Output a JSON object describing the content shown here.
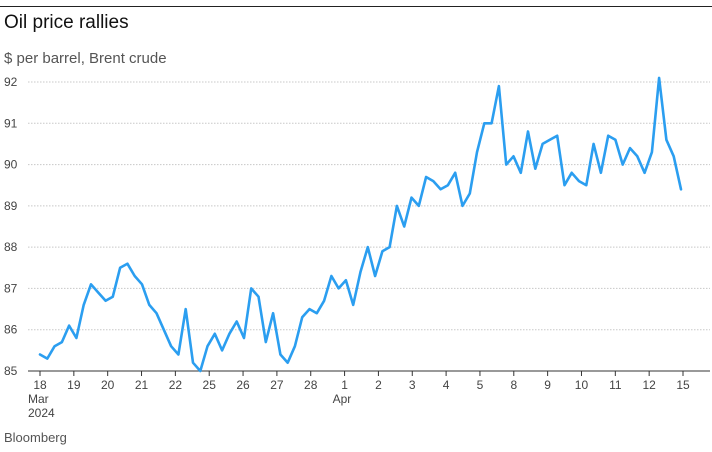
{
  "header": {
    "title": "Oil price rallies",
    "subtitle": "$ per barrel, Brent crude"
  },
  "footer": {
    "source": "Bloomberg"
  },
  "chart_data": {
    "type": "line",
    "title": "Oil price rallies",
    "subtitle": "$ per barrel, Brent crude",
    "ylabel": "$ per barrel",
    "ylim": [
      85,
      92
    ],
    "yticks": [
      85,
      86,
      87,
      88,
      89,
      90,
      91,
      92
    ],
    "grid": "horizontal-dotted",
    "line_color": "#2b9ef0",
    "xtick_labels": [
      "18",
      "19",
      "20",
      "21",
      "22",
      "25",
      "26",
      "27",
      "28",
      "1",
      "2",
      "3",
      "4",
      "5",
      "8",
      "9",
      "10",
      "11",
      "12",
      "15"
    ],
    "xtick_sublabels": {
      "18": [
        "Mar",
        "2024"
      ],
      "1": [
        "Apr"
      ]
    },
    "series": [
      {
        "x": [
          "Mar 18",
          "Mar 18",
          "Mar 18",
          "Mar 18",
          "Mar 19",
          "Mar 19",
          "Mar 19",
          "Mar 19",
          "Mar 19",
          "Mar 20",
          "Mar 20",
          "Mar 20",
          "Mar 20",
          "Mar 20",
          "Mar 21",
          "Mar 21",
          "Mar 21",
          "Mar 21",
          "Mar 22",
          "Mar 22",
          "Mar 22",
          "Mar 22",
          "Mar 22",
          "Mar 25",
          "Mar 25",
          "Mar 25",
          "Mar 25",
          "Mar 26",
          "Mar 26",
          "Mar 26",
          "Mar 26",
          "Mar 26",
          "Mar 27",
          "Mar 27",
          "Mar 27",
          "Mar 27",
          "Mar 28",
          "Mar 28",
          "Mar 28",
          "Mar 28",
          "Apr 1",
          "Apr 1",
          "Apr 1",
          "Apr 1",
          "Apr 1",
          "Apr 2",
          "Apr 2",
          "Apr 2",
          "Apr 2",
          "Apr 3",
          "Apr 3",
          "Apr 3",
          "Apr 3",
          "Apr 3",
          "Apr 4",
          "Apr 4",
          "Apr 4",
          "Apr 4",
          "Apr 5",
          "Apr 5",
          "Apr 5",
          "Apr 5",
          "Apr 5",
          "Apr 8",
          "Apr 8",
          "Apr 8",
          "Apr 8",
          "Apr 9",
          "Apr 9",
          "Apr 9",
          "Apr 9",
          "Apr 9",
          "Apr 10",
          "Apr 10",
          "Apr 10",
          "Apr 10",
          "Apr 11",
          "Apr 11",
          "Apr 11",
          "Apr 11",
          "Apr 12",
          "Apr 12",
          "Apr 12",
          "Apr 12",
          "Apr 12",
          "Apr 15",
          "Apr 15",
          "Apr 15",
          "Apr 15"
        ],
        "values": [
          85.4,
          85.3,
          85.6,
          85.7,
          86.1,
          85.8,
          86.6,
          87.1,
          86.9,
          86.7,
          86.8,
          87.5,
          87.6,
          87.3,
          87.1,
          86.6,
          86.4,
          86.0,
          85.6,
          85.4,
          86.5,
          85.2,
          85.0,
          85.6,
          85.9,
          85.5,
          85.9,
          86.2,
          85.8,
          87.0,
          86.8,
          85.7,
          86.4,
          85.4,
          85.2,
          85.6,
          86.3,
          86.5,
          86.4,
          86.7,
          87.3,
          87.0,
          87.2,
          86.6,
          87.4,
          88.0,
          87.3,
          87.9,
          88.0,
          89.0,
          88.5,
          89.2,
          89.0,
          89.7,
          89.6,
          89.4,
          89.5,
          89.8,
          89.0,
          89.3,
          90.3,
          91.0,
          91.0,
          91.9,
          90.0,
          90.2,
          89.8,
          90.8,
          89.9,
          90.5,
          90.6,
          90.7,
          89.5,
          89.8,
          89.6,
          89.5,
          90.5,
          89.8,
          90.7,
          90.6,
          90.0,
          90.4,
          90.2,
          89.8,
          90.3,
          92.1,
          90.6,
          90.2,
          89.4
        ]
      }
    ]
  }
}
